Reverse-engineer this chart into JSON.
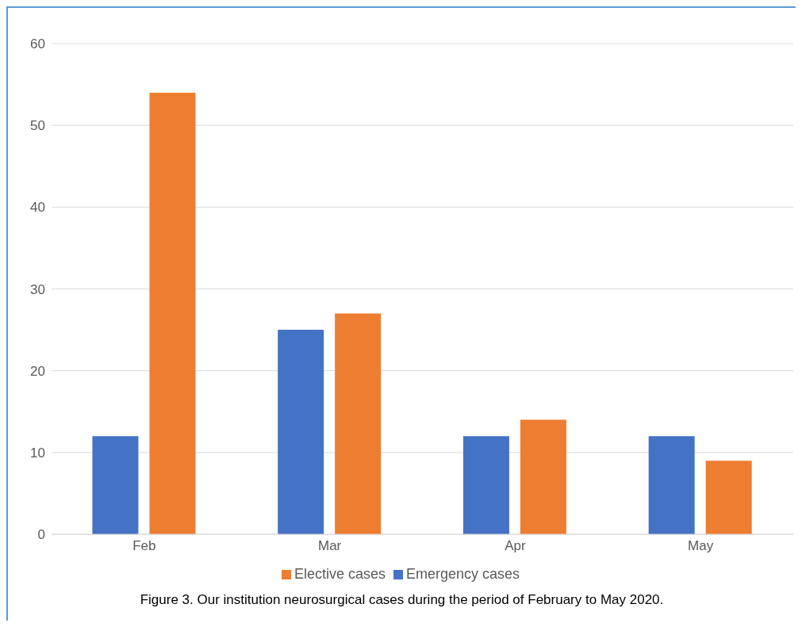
{
  "chart_data": {
    "type": "bar",
    "categories": [
      "Feb",
      "Mar",
      "Apr",
      "May"
    ],
    "series": [
      {
        "name": "Emergency cases",
        "color": "#4472c4",
        "values": [
          12,
          25,
          12,
          12
        ]
      },
      {
        "name": "Elective cases",
        "color": "#ed7d31",
        "values": [
          54,
          27,
          14,
          9
        ]
      }
    ],
    "ylim": [
      0,
      60
    ],
    "yticks": [
      0,
      10,
      20,
      30,
      40,
      50,
      60
    ],
    "grid": "y",
    "legend": "bottom",
    "annotations": [
      "Figure 3.  Our institution neurosurgical cases during the period of February to May 2020."
    ]
  }
}
